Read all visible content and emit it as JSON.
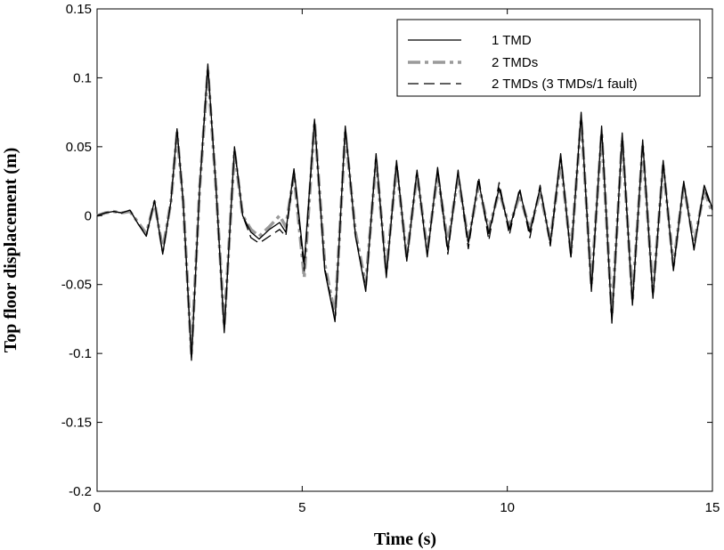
{
  "chart_data": {
    "type": "line",
    "title": "",
    "xlabel": "Time (s)",
    "ylabel": "Top floor displacement (m)",
    "xlim": [
      0,
      15
    ],
    "ylim": [
      -0.2,
      0.15
    ],
    "xticks": [
      0,
      5,
      10,
      15
    ],
    "xtick_labels": [
      "0",
      "5",
      "10",
      "15"
    ],
    "yticks": [
      -0.2,
      -0.15,
      -0.1,
      -0.05,
      0,
      0.05,
      0.1,
      0.15
    ],
    "ytick_labels": [
      "-0.2",
      "-0.15",
      "-0.1",
      "-0.05",
      "0",
      "0.05",
      "0.1",
      "0.15"
    ],
    "grid": false,
    "legend_position": "top-right",
    "series": [
      {
        "name": "1 TMD",
        "style": "solid",
        "color": "#000000",
        "x": [
          0,
          0.2,
          0.4,
          0.6,
          0.8,
          1.0,
          1.2,
          1.4,
          1.6,
          1.8,
          1.95,
          2.1,
          2.3,
          2.5,
          2.7,
          2.9,
          3.1,
          3.35,
          3.55,
          3.75,
          3.95,
          4.2,
          4.45,
          4.6,
          4.8,
          5.05,
          5.3,
          5.55,
          5.8,
          6.05,
          6.3,
          6.55,
          6.8,
          7.05,
          7.3,
          7.55,
          7.8,
          8.05,
          8.3,
          8.55,
          8.8,
          9.05,
          9.3,
          9.55,
          9.8,
          10.05,
          10.3,
          10.55,
          10.8,
          11.05,
          11.3,
          11.55,
          11.8,
          12.05,
          12.3,
          12.55,
          12.8,
          13.05,
          13.3,
          13.55,
          13.8,
          14.05,
          14.3,
          14.55,
          14.8,
          15.0
        ],
        "y": [
          0,
          0.002,
          0.003,
          0.002,
          0.004,
          -0.006,
          -0.015,
          0.011,
          -0.028,
          0.01,
          0.063,
          0.01,
          -0.105,
          0.02,
          0.11,
          0.02,
          -0.085,
          0.05,
          0.0,
          -0.012,
          -0.017,
          -0.01,
          -0.005,
          -0.012,
          0.034,
          -0.035,
          0.07,
          -0.04,
          -0.077,
          0.065,
          -0.015,
          -0.055,
          0.045,
          -0.045,
          0.04,
          -0.033,
          0.033,
          -0.03,
          0.035,
          -0.025,
          0.032,
          -0.02,
          0.025,
          -0.013,
          0.02,
          -0.01,
          0.018,
          -0.012,
          0.02,
          -0.02,
          0.045,
          -0.03,
          0.075,
          -0.055,
          0.065,
          -0.078,
          0.06,
          -0.065,
          0.055,
          -0.06,
          0.04,
          -0.04,
          0.025,
          -0.025,
          0.022,
          0.005
        ]
      },
      {
        "name": "2 TMDs",
        "style": "dash-dot",
        "color": "#9a9a9a",
        "x": [
          0,
          0.2,
          0.4,
          0.6,
          0.8,
          1.0,
          1.2,
          1.4,
          1.6,
          1.8,
          1.95,
          2.1,
          2.3,
          2.5,
          2.7,
          2.9,
          3.1,
          3.35,
          3.55,
          3.75,
          3.95,
          4.2,
          4.45,
          4.6,
          4.8,
          5.05,
          5.3,
          5.55,
          5.8,
          6.05,
          6.3,
          6.55,
          6.8,
          7.05,
          7.3,
          7.55,
          7.8,
          8.05,
          8.3,
          8.55,
          8.8,
          9.05,
          9.3,
          9.55,
          9.8,
          10.05,
          10.3,
          10.55,
          10.8,
          11.05,
          11.3,
          11.55,
          11.8,
          12.05,
          12.3,
          12.55,
          12.8,
          13.05,
          13.3,
          13.55,
          13.8,
          14.05,
          14.3,
          14.55,
          14.8,
          15.0
        ],
        "y": [
          0,
          0.002,
          0.003,
          0.002,
          0.003,
          -0.005,
          -0.013,
          0.01,
          -0.025,
          0.01,
          0.06,
          0.01,
          -0.1,
          0.02,
          0.105,
          0.02,
          -0.08,
          0.047,
          0.0,
          -0.01,
          -0.015,
          -0.008,
          0.0,
          -0.008,
          0.03,
          -0.045,
          0.068,
          -0.035,
          -0.072,
          0.06,
          -0.012,
          -0.05,
          0.04,
          -0.04,
          0.036,
          -0.03,
          0.03,
          -0.025,
          0.03,
          -0.02,
          0.028,
          -0.018,
          0.022,
          -0.01,
          0.018,
          -0.008,
          0.015,
          -0.01,
          0.017,
          -0.018,
          0.04,
          -0.027,
          0.07,
          -0.05,
          0.06,
          -0.072,
          0.055,
          -0.06,
          0.05,
          -0.055,
          0.036,
          -0.036,
          0.022,
          -0.02,
          0.018,
          0.002
        ]
      },
      {
        "name": "2 TMDs (3 TMDs/1 fault)",
        "style": "dashed",
        "color": "#000000",
        "x": [
          0,
          0.2,
          0.4,
          0.6,
          0.8,
          1.0,
          1.2,
          1.4,
          1.6,
          1.8,
          1.95,
          2.1,
          2.3,
          2.5,
          2.7,
          2.9,
          3.1,
          3.35,
          3.55,
          3.75,
          3.95,
          4.2,
          4.45,
          4.6,
          4.8,
          5.05,
          5.3,
          5.55,
          5.8,
          6.05,
          6.3,
          6.55,
          6.8,
          7.05,
          7.3,
          7.55,
          7.8,
          8.05,
          8.3,
          8.55,
          8.8,
          9.05,
          9.3,
          9.55,
          9.8,
          10.05,
          10.3,
          10.55,
          10.8,
          11.05,
          11.3,
          11.55,
          11.8,
          12.05,
          12.3,
          12.55,
          12.8,
          13.05,
          13.3,
          13.55,
          13.8,
          14.05,
          14.3,
          14.55,
          14.8,
          15.0
        ],
        "y": [
          0,
          0.002,
          0.003,
          0.002,
          0.004,
          -0.006,
          -0.014,
          0.011,
          -0.027,
          0.01,
          0.062,
          0.01,
          -0.103,
          0.02,
          0.108,
          0.02,
          -0.083,
          0.049,
          0.0,
          -0.016,
          -0.02,
          -0.015,
          -0.01,
          -0.015,
          0.032,
          -0.04,
          0.069,
          -0.038,
          -0.075,
          0.063,
          -0.014,
          -0.053,
          0.043,
          -0.043,
          0.038,
          -0.032,
          0.032,
          -0.028,
          0.033,
          -0.028,
          0.033,
          -0.024,
          0.028,
          -0.018,
          0.024,
          -0.014,
          0.02,
          -0.016,
          0.022,
          -0.022,
          0.043,
          -0.03,
          0.073,
          -0.053,
          0.063,
          -0.076,
          0.058,
          -0.063,
          0.053,
          -0.058,
          0.038,
          -0.038,
          0.024,
          -0.024,
          0.02,
          0.004
        ]
      }
    ]
  }
}
